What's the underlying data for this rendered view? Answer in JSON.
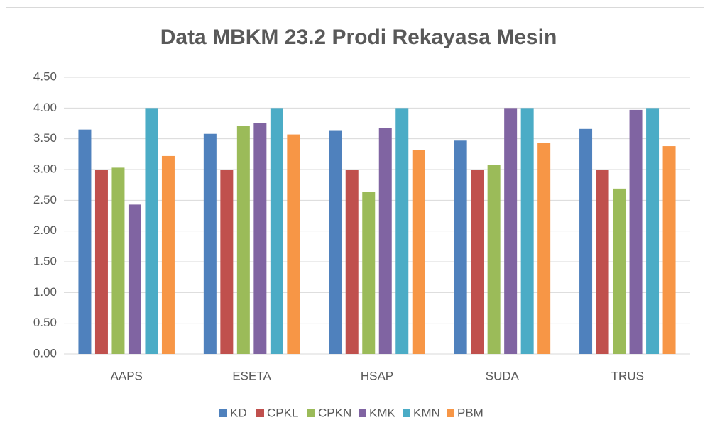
{
  "chart_data": {
    "type": "bar",
    "title": "Data MBKM 23.2 Prodi Rekayasa Mesin",
    "categories": [
      "AAPS",
      "ESETA",
      "HSAP",
      "SUDA",
      "TRUS"
    ],
    "series": [
      {
        "name": "KD",
        "color": "#4f81bd",
        "values": [
          3.65,
          3.58,
          3.64,
          3.47,
          3.66
        ]
      },
      {
        "name": "CPKL",
        "color": "#c0504d",
        "values": [
          3.0,
          3.0,
          3.0,
          3.0,
          3.0
        ]
      },
      {
        "name": "CPKN",
        "color": "#9bbb59",
        "values": [
          3.03,
          3.71,
          2.64,
          3.08,
          2.69
        ]
      },
      {
        "name": "KMK",
        "color": "#8064a2",
        "values": [
          2.43,
          3.75,
          3.68,
          4.0,
          3.97
        ]
      },
      {
        "name": "KMN",
        "color": "#4bacc6",
        "values": [
          4.0,
          4.0,
          4.0,
          4.0,
          4.0
        ]
      },
      {
        "name": "PBM",
        "color": "#f79646",
        "values": [
          3.22,
          3.57,
          3.32,
          3.43,
          3.38
        ]
      }
    ],
    "ylim": [
      0,
      4.5
    ],
    "yticks": [
      {
        "value": 0,
        "label": "0.00"
      },
      {
        "value": 0.5,
        "label": "0.50"
      },
      {
        "value": 1,
        "label": "1.00"
      },
      {
        "value": 1.5,
        "label": "1.50"
      },
      {
        "value": 2,
        "label": "2.00"
      },
      {
        "value": 2.5,
        "label": "2.50"
      },
      {
        "value": 3,
        "label": "3.00"
      },
      {
        "value": 3.5,
        "label": "3.50"
      },
      {
        "value": 4,
        "label": "4.00"
      },
      {
        "value": 4.5,
        "label": "4.50"
      }
    ],
    "grid": true,
    "legend": "bottom"
  }
}
